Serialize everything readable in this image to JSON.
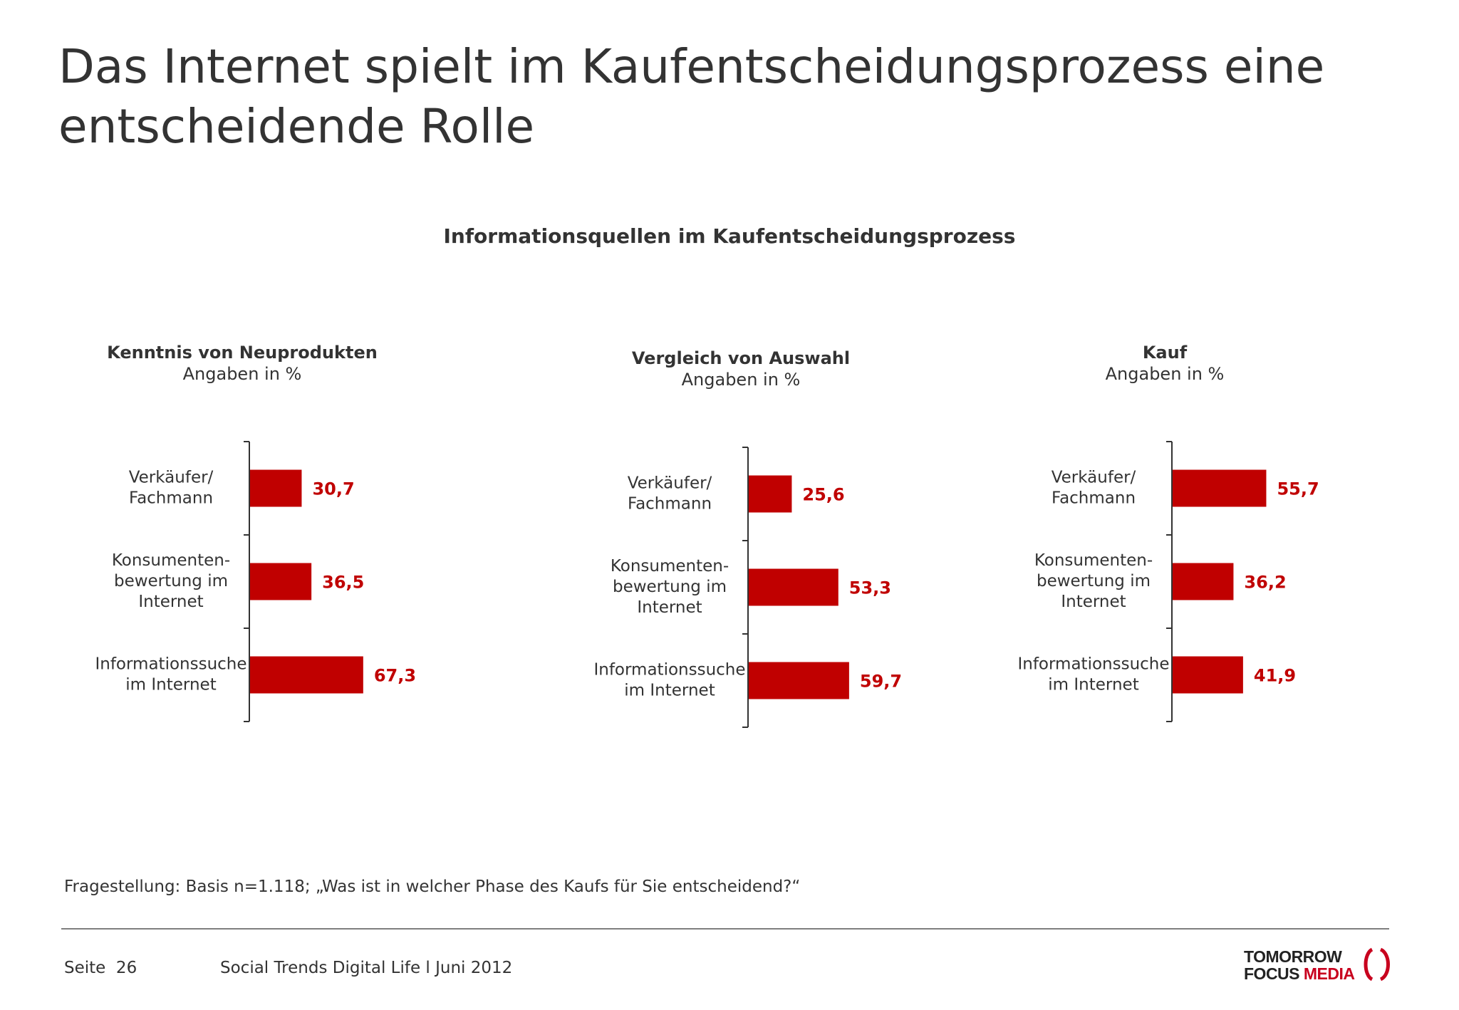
{
  "page": {
    "title": "Das Internet spielt im Kaufentscheidungsprozess eine entscheidende Rolle",
    "subtitle": "Informationsquellen im Kaufentscheidungsprozess",
    "question": "Fragestellung: Basis n=1.118; „Was ist in welcher Phase des Kaufs für Sie entscheidend?“",
    "page_label": "Seite  26",
    "footer_text": "Social Trends Digital Life l Juni 2012",
    "logo": {
      "line1": "TOMORROW",
      "line2_a": "FOCUS ",
      "line2_b": "MEDIA"
    }
  },
  "colors": {
    "bar": "#c00000",
    "value_text": "#c00000",
    "axis": "#333333",
    "logo_red": "#c8001e"
  },
  "chart_data": [
    {
      "type": "bar",
      "orientation": "horizontal",
      "title": "Kenntnis von Neuprodukten",
      "unit": "Angaben in %",
      "categories": [
        [
          "Verkäufer/",
          "Fachmann"
        ],
        [
          "Konsumenten-",
          "bewertung im",
          "Internet"
        ],
        [
          "Informationssuche",
          "im Internet"
        ]
      ],
      "values": [
        30.7,
        36.5,
        67.3
      ],
      "value_labels": [
        "30,7",
        "36,5",
        "67,3"
      ],
      "xlim": [
        0,
        100
      ]
    },
    {
      "type": "bar",
      "orientation": "horizontal",
      "title": "Vergleich von Auswahl",
      "unit": "Angaben in %",
      "categories": [
        [
          "Verkäufer/",
          "Fachmann"
        ],
        [
          "Konsumenten-",
          "bewertung im",
          "Internet"
        ],
        [
          "Informationssuche",
          "im Internet"
        ]
      ],
      "values": [
        25.6,
        53.3,
        59.7
      ],
      "value_labels": [
        "25,6",
        "53,3",
        "59,7"
      ],
      "xlim": [
        0,
        100
      ]
    },
    {
      "type": "bar",
      "orientation": "horizontal",
      "title": "Kauf",
      "unit": "Angaben in %",
      "categories": [
        [
          "Verkäufer/",
          "Fachmann"
        ],
        [
          "Konsumenten-",
          "bewertung im",
          "Internet"
        ],
        [
          "Informationssuche",
          "im Internet"
        ]
      ],
      "values": [
        55.7,
        36.2,
        41.9
      ],
      "value_labels": [
        "55,7",
        "36,2",
        "41,9"
      ],
      "xlim": [
        0,
        100
      ]
    }
  ]
}
